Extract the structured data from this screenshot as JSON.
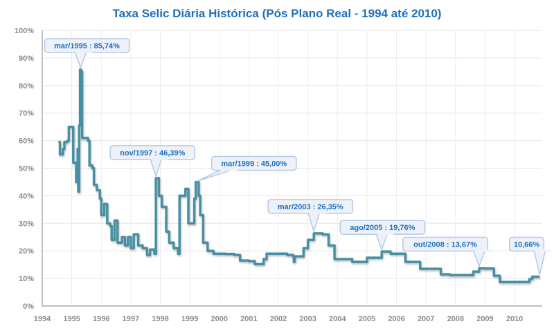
{
  "chart_data": {
    "type": "line",
    "title": "Taxa Selic Diária Histórica (Pós Plano Real - 1994 até 2010)",
    "xlabel": "",
    "ylabel": "",
    "xlim": [
      1994,
      2010.95
    ],
    "ylim": [
      0,
      100
    ],
    "x_ticks": [
      "1994",
      "1995",
      "1996",
      "1997",
      "1998",
      "1999",
      "2000",
      "2001",
      "2002",
      "2003",
      "2004",
      "2005",
      "2006",
      "2007",
      "2008",
      "2009",
      "2010"
    ],
    "y_ticks": [
      "0%",
      "10%",
      "20%",
      "30%",
      "40%",
      "50%",
      "60%",
      "70%",
      "80%",
      "90%",
      "100%"
    ],
    "grid": true,
    "line_color": "#4a8fa3",
    "series": [
      {
        "x": [
          1994.55,
          1994.6,
          1994.7,
          1994.75,
          1994.85,
          1994.9,
          1995.0,
          1995.05,
          1995.15,
          1995.2,
          1995.22,
          1995.25,
          1995.28,
          1995.32,
          1995.35,
          1995.55,
          1995.6,
          1995.7,
          1995.75,
          1995.85,
          1995.95,
          1996.0,
          1996.1,
          1996.2,
          1996.3,
          1996.35,
          1996.45,
          1996.55,
          1996.7,
          1996.8,
          1996.9,
          1997.0,
          1997.1,
          1997.25,
          1997.4,
          1997.55,
          1997.65,
          1997.8,
          1997.85,
          1997.95,
          1998.05,
          1998.2,
          1998.3,
          1998.45,
          1998.6,
          1998.65,
          1998.85,
          1998.95,
          1999.05,
          1999.15,
          1999.2,
          1999.3,
          1999.35,
          1999.45,
          1999.6,
          1999.8,
          2000.2,
          2000.5,
          2000.7,
          2001.0,
          2001.2,
          2001.5,
          2001.6,
          2002.0,
          2002.3,
          2002.5,
          2002.52,
          2002.55,
          2002.8,
          2002.85,
          2003.0,
          2003.2,
          2003.5,
          2003.7,
          2003.9,
          2004.5,
          2005.0,
          2005.5,
          2005.8,
          2006.3,
          2006.8,
          2007.5,
          2007.8,
          2008.3,
          2008.6,
          2008.8,
          2009.0,
          2009.3,
          2009.5,
          2010.3,
          2010.5,
          2010.6,
          2010.85
        ],
        "y": [
          59.5,
          55,
          57,
          59.5,
          60,
          65,
          65,
          52,
          45,
          57,
          41.5,
          65.5,
          85.74,
          85,
          61,
          60,
          51,
          50,
          44,
          42,
          39,
          33,
          37,
          30,
          29,
          24,
          31,
          23,
          25,
          22,
          25,
          21,
          26,
          22,
          21,
          18.5,
          20.5,
          19,
          46.39,
          40,
          36,
          27,
          23,
          21,
          19,
          40,
          42.5,
          30,
          30,
          39,
          45,
          40,
          33,
          23,
          20,
          19,
          18.9,
          18.5,
          16.5,
          16.3,
          15.2,
          17,
          19,
          19,
          18.5,
          18,
          16,
          18,
          18,
          21,
          24,
          26.35,
          26,
          22,
          17,
          16,
          17.5,
          19.76,
          19,
          16,
          13.5,
          11.5,
          11.2,
          11.2,
          12.5,
          13.67,
          13.6,
          11,
          8.7,
          8.7,
          9.8,
          10.66,
          10.66
        ]
      }
    ],
    "annotations": [
      {
        "label": "mar/1995 : 85,74%",
        "x": 1995.3,
        "y": 85.74
      },
      {
        "label": "nov/1997 : 46,39%",
        "x": 1997.85,
        "y": 46.39
      },
      {
        "label": "mar/1999 : 45,00%",
        "x": 1999.2,
        "y": 45.0
      },
      {
        "label": "mar/2003 : 26,35%",
        "x": 2003.2,
        "y": 26.35
      },
      {
        "label": "ago/2005 : 19,76%",
        "x": 2005.5,
        "y": 19.76
      },
      {
        "label": "out/2008 : 13,67%",
        "x": 2008.8,
        "y": 13.67
      },
      {
        "label": "10,66%",
        "x": 2010.85,
        "y": 10.66
      }
    ]
  }
}
